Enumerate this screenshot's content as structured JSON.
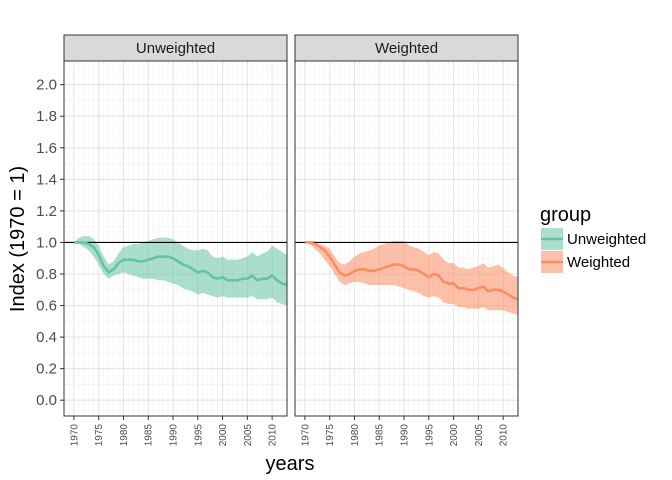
{
  "chart_data": {
    "type": "line",
    "xlabel": "years",
    "ylabel": "Index (1970 = 1)",
    "xlim": [
      1968,
      2013
    ],
    "ylim": [
      -0.1,
      2.15
    ],
    "xticks": [
      1970,
      1975,
      1980,
      1985,
      1990,
      1995,
      2000,
      2005,
      2010
    ],
    "xtick_labels": [
      "1970",
      "1975",
      "1980",
      "1985",
      "1990",
      "1995",
      "2000",
      "2005",
      "2010"
    ],
    "yticks": [
      0.0,
      0.2,
      0.4,
      0.6,
      0.8,
      1.0,
      1.2,
      1.4,
      1.6,
      1.8,
      2.0
    ],
    "ytick_labels": [
      "0.0",
      "0.2",
      "0.4",
      "0.6",
      "0.8",
      "1.0",
      "1.2",
      "1.4",
      "1.6",
      "1.8",
      "2.0"
    ],
    "reference_line": 1.0,
    "grid": true,
    "legend": {
      "title": "group",
      "position": "right",
      "entries": [
        "Unweighted",
        "Weighted"
      ]
    },
    "facets": [
      {
        "label": "Unweighted",
        "color": "#66c2a5",
        "x": [
          1970,
          1971,
          1972,
          1973,
          1974,
          1975,
          1976,
          1977,
          1978,
          1979,
          1980,
          1981,
          1982,
          1983,
          1984,
          1985,
          1986,
          1987,
          1988,
          1989,
          1990,
          1991,
          1992,
          1993,
          1994,
          1995,
          1996,
          1997,
          1998,
          1999,
          2000,
          2001,
          2002,
          2003,
          2004,
          2005,
          2006,
          2007,
          2008,
          2009,
          2010,
          2011,
          2012,
          2013
        ],
        "y": [
          1.0,
          1.0,
          1.0,
          0.99,
          0.97,
          0.92,
          0.85,
          0.81,
          0.83,
          0.87,
          0.89,
          0.89,
          0.89,
          0.88,
          0.88,
          0.89,
          0.9,
          0.91,
          0.91,
          0.91,
          0.9,
          0.88,
          0.86,
          0.85,
          0.83,
          0.81,
          0.82,
          0.81,
          0.78,
          0.77,
          0.78,
          0.76,
          0.76,
          0.76,
          0.77,
          0.77,
          0.79,
          0.76,
          0.77,
          0.77,
          0.79,
          0.76,
          0.74,
          0.73
        ],
        "lower": [
          1.0,
          0.99,
          0.97,
          0.95,
          0.91,
          0.86,
          0.8,
          0.77,
          0.79,
          0.8,
          0.81,
          0.8,
          0.79,
          0.78,
          0.77,
          0.77,
          0.77,
          0.76,
          0.76,
          0.75,
          0.74,
          0.73,
          0.71,
          0.7,
          0.69,
          0.67,
          0.68,
          0.67,
          0.66,
          0.65,
          0.66,
          0.65,
          0.65,
          0.65,
          0.65,
          0.65,
          0.66,
          0.64,
          0.64,
          0.64,
          0.65,
          0.62,
          0.61,
          0.6
        ],
        "upper": [
          1.0,
          1.03,
          1.04,
          1.04,
          1.02,
          0.98,
          0.91,
          0.86,
          0.88,
          0.93,
          0.97,
          0.98,
          0.99,
          0.99,
          1.0,
          1.01,
          1.02,
          1.03,
          1.03,
          1.03,
          1.02,
          1.0,
          0.98,
          0.96,
          0.95,
          0.95,
          0.96,
          0.95,
          0.91,
          0.9,
          0.91,
          0.89,
          0.89,
          0.89,
          0.9,
          0.91,
          0.94,
          0.91,
          0.93,
          0.94,
          0.98,
          0.96,
          0.94,
          0.92
        ]
      },
      {
        "label": "Weighted",
        "color": "#fc8d62",
        "x": [
          1970,
          1971,
          1972,
          1973,
          1974,
          1975,
          1976,
          1977,
          1978,
          1979,
          1980,
          1981,
          1982,
          1983,
          1984,
          1985,
          1986,
          1987,
          1988,
          1989,
          1990,
          1991,
          1992,
          1993,
          1994,
          1995,
          1996,
          1997,
          1998,
          1999,
          2000,
          2001,
          2002,
          2003,
          2004,
          2005,
          2006,
          2007,
          2008,
          2009,
          2010,
          2011,
          2012,
          2013
        ],
        "y": [
          1.0,
          1.0,
          0.99,
          0.97,
          0.95,
          0.91,
          0.86,
          0.81,
          0.79,
          0.8,
          0.82,
          0.83,
          0.83,
          0.82,
          0.82,
          0.83,
          0.84,
          0.85,
          0.86,
          0.86,
          0.85,
          0.83,
          0.83,
          0.82,
          0.8,
          0.78,
          0.8,
          0.79,
          0.75,
          0.74,
          0.74,
          0.71,
          0.71,
          0.7,
          0.7,
          0.71,
          0.72,
          0.69,
          0.7,
          0.7,
          0.69,
          0.67,
          0.65,
          0.64
        ],
        "lower": [
          1.0,
          0.99,
          0.96,
          0.93,
          0.89,
          0.85,
          0.8,
          0.75,
          0.73,
          0.74,
          0.75,
          0.75,
          0.74,
          0.73,
          0.73,
          0.73,
          0.73,
          0.73,
          0.73,
          0.72,
          0.71,
          0.7,
          0.69,
          0.68,
          0.66,
          0.65,
          0.66,
          0.65,
          0.62,
          0.61,
          0.61,
          0.59,
          0.59,
          0.58,
          0.58,
          0.58,
          0.59,
          0.57,
          0.57,
          0.57,
          0.57,
          0.56,
          0.55,
          0.54
        ],
        "upper": [
          1.0,
          1.01,
          1.01,
          0.99,
          0.98,
          0.96,
          0.91,
          0.87,
          0.86,
          0.88,
          0.91,
          0.93,
          0.94,
          0.95,
          0.96,
          0.98,
          0.99,
          1.0,
          1.01,
          1.01,
          1.01,
          0.98,
          0.97,
          0.96,
          0.94,
          0.92,
          0.94,
          0.93,
          0.89,
          0.87,
          0.87,
          0.84,
          0.84,
          0.83,
          0.84,
          0.85,
          0.87,
          0.84,
          0.85,
          0.86,
          0.84,
          0.81,
          0.79,
          0.78
        ]
      }
    ]
  }
}
